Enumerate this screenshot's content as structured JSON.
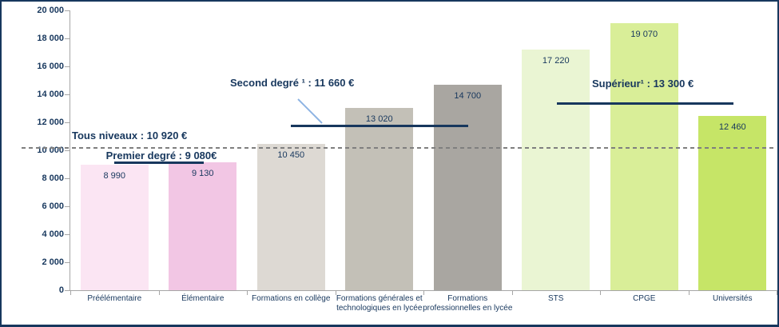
{
  "chart_data": {
    "type": "bar",
    "categories": [
      "Préélémentaire",
      "Élémentaire",
      "Formations en collège",
      "Formations générales et technologiques en lycée",
      "Formations professionnelles en lycée",
      "STS",
      "CPGE",
      "Universités"
    ],
    "values": [
      8990,
      9130,
      10450,
      13020,
      14700,
      17220,
      19070,
      12460
    ],
    "value_labels": [
      "8 990",
      "9 130",
      "10 450",
      "13 020",
      "14 700",
      "17 220",
      "19 070",
      "12 460"
    ],
    "bar_colors": [
      "#fbe5f3",
      "#f2c6e4",
      "#ddd9d3",
      "#c3c0b7",
      "#a9a6a1",
      "#eaf5d3",
      "#d9ee98",
      "#c6e567"
    ],
    "ylim": [
      0,
      20000
    ],
    "y_tick_step": 2000,
    "y_tick_labels": [
      "0",
      "2 000",
      "4 000",
      "6 000",
      "8 000",
      "10 000",
      "12 000",
      "14 000",
      "16 000",
      "18 000",
      "20 000"
    ],
    "grid": "off",
    "legend": "none",
    "annotations": [
      {
        "id": "tous-niveaux",
        "label": "Tous niveaux : 10 920 €",
        "value": 10920,
        "line": "dashed",
        "span": "full-width"
      },
      {
        "id": "premier-degre",
        "label": "Premier degré : 9 080€",
        "value": 9080,
        "line": "solid",
        "span_categories": [
          "Préélémentaire",
          "Élémentaire"
        ]
      },
      {
        "id": "second-degre",
        "label": "Second degré ¹ : 11 660 €",
        "value": 11660,
        "line": "solid",
        "span_categories": [
          "Formations en collège",
          "Formations professionnelles en lycée"
        ]
      },
      {
        "id": "superieur",
        "label": "Supérieur¹ : 13 300 €",
        "value": 13300,
        "line": "solid",
        "span_categories": [
          "STS",
          "Universités"
        ]
      }
    ]
  },
  "colors": {
    "text_navy": "#17375d",
    "axis_gray": "#a6a6a6",
    "dashed_gray": "#7f7f7f",
    "leader_blue": "#8eb4e3",
    "frame_border": "#17375d",
    "background": "#ffffff"
  }
}
